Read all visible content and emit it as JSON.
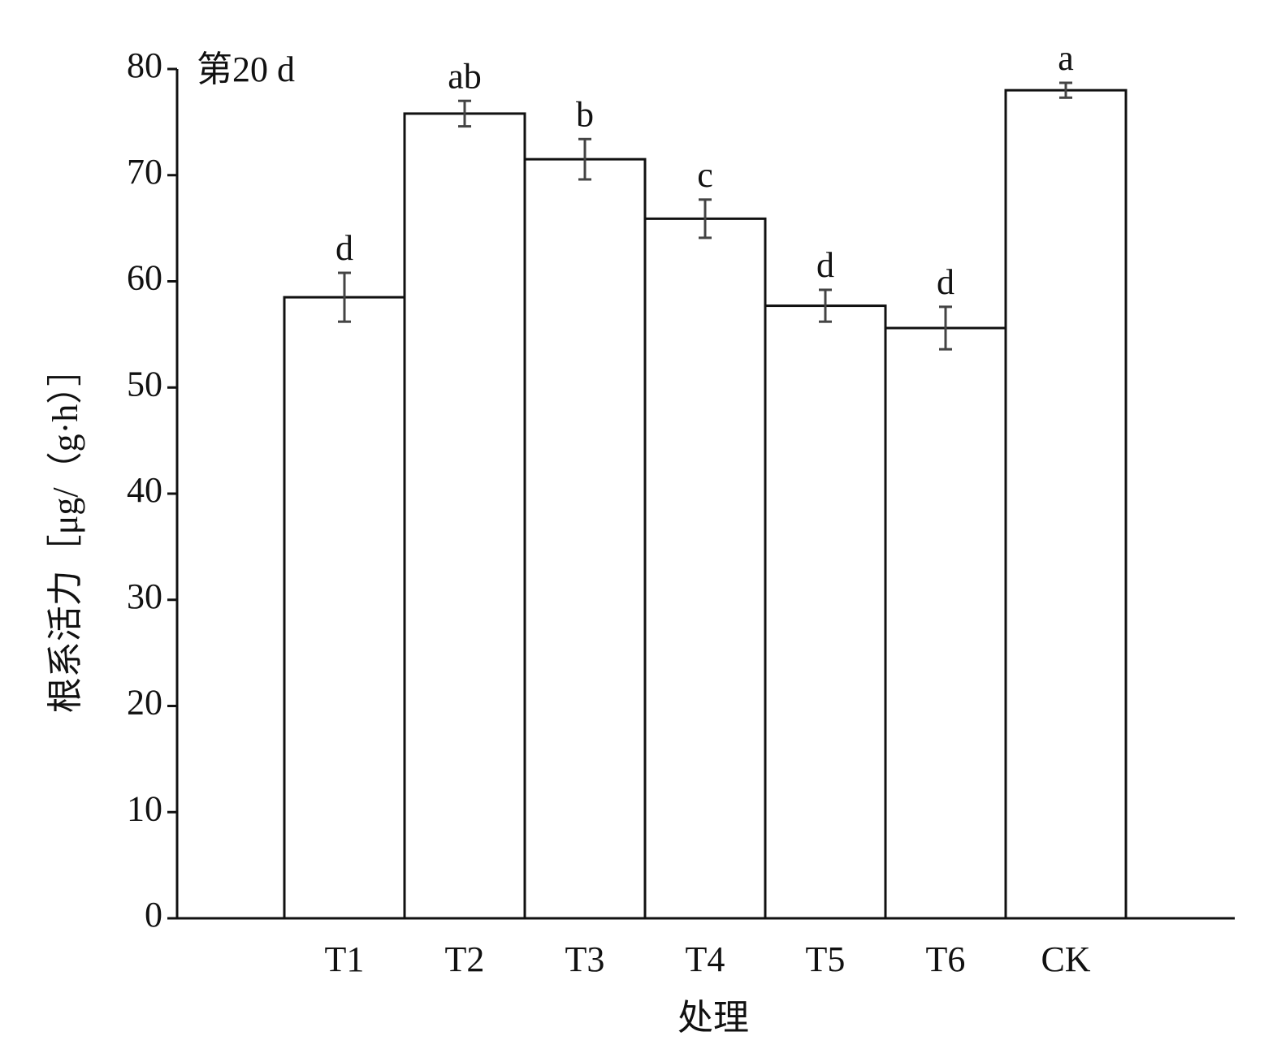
{
  "chart_data": {
    "type": "bar",
    "annotation": "第20 d",
    "x_label": "处理",
    "y_label": "根系活力［μg/（g·h）］",
    "categories": [
      "T1",
      "T2",
      "T3",
      "T4",
      "T5",
      "T6",
      "CK"
    ],
    "values": [
      58.5,
      75.8,
      71.5,
      65.9,
      57.7,
      55.6,
      78.0
    ],
    "errors": [
      2.3,
      1.2,
      1.9,
      1.8,
      1.5,
      2.0,
      0.7
    ],
    "significance": [
      "d",
      "ab",
      "b",
      "c",
      "d",
      "d",
      "a"
    ],
    "color": "#ffffff",
    "ylim": [
      0,
      80
    ],
    "yticks": [
      0,
      10,
      20,
      30,
      40,
      50,
      60,
      70,
      80
    ],
    "grid": false
  }
}
